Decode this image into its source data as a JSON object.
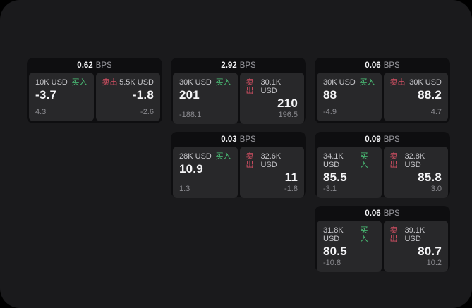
{
  "labels": {
    "bps_unit": "BPS",
    "buy": "买入",
    "sell": "卖出"
  },
  "colors": {
    "background": "#000000",
    "surface": "#1a1a1c",
    "card": "#0e0e10",
    "panel": "#28282a",
    "label": "#c6c6ca",
    "subvalue": "#8b8b90",
    "unit": "#9a9aa0",
    "buygreen": "#4bc478",
    "sellred": "#d65064",
    "valuewhite": "#f5f5f7"
  },
  "cards": [
    {
      "spread_bps": "0.62",
      "buy": {
        "volume": "10K USD",
        "price": "-3.7",
        "change": "4.3"
      },
      "sell": {
        "volume": "5.5K USD",
        "price": "-1.8",
        "change": "-2.6"
      }
    },
    {
      "spread_bps": "2.92",
      "buy": {
        "volume": "30K USD",
        "price": "201",
        "change": "-188.1"
      },
      "sell": {
        "volume": "30.1K USD",
        "price": "210",
        "change": "196.5"
      }
    },
    {
      "spread_bps": "0.06",
      "buy": {
        "volume": "30K USD",
        "price": "88",
        "change": "-4.9"
      },
      "sell": {
        "volume": "30K USD",
        "price": "88.2",
        "change": "4.7"
      }
    },
    {
      "spread_bps": "0.03",
      "buy": {
        "volume": "28K USD",
        "price": "10.9",
        "change": "1.3"
      },
      "sell": {
        "volume": "32.6K USD",
        "price": "11",
        "change": "-1.8"
      }
    },
    {
      "spread_bps": "0.09",
      "buy": {
        "volume": "34.1K USD",
        "price": "85.5",
        "change": "-3.1"
      },
      "sell": {
        "volume": "32.8K USD",
        "price": "85.8",
        "change": "3.0"
      }
    },
    {
      "spread_bps": "0.06",
      "buy": {
        "volume": "31.8K USD",
        "price": "80.5",
        "change": "-10.8"
      },
      "sell": {
        "volume": "39.1K USD",
        "price": "80.7",
        "change": "10.2"
      }
    }
  ]
}
